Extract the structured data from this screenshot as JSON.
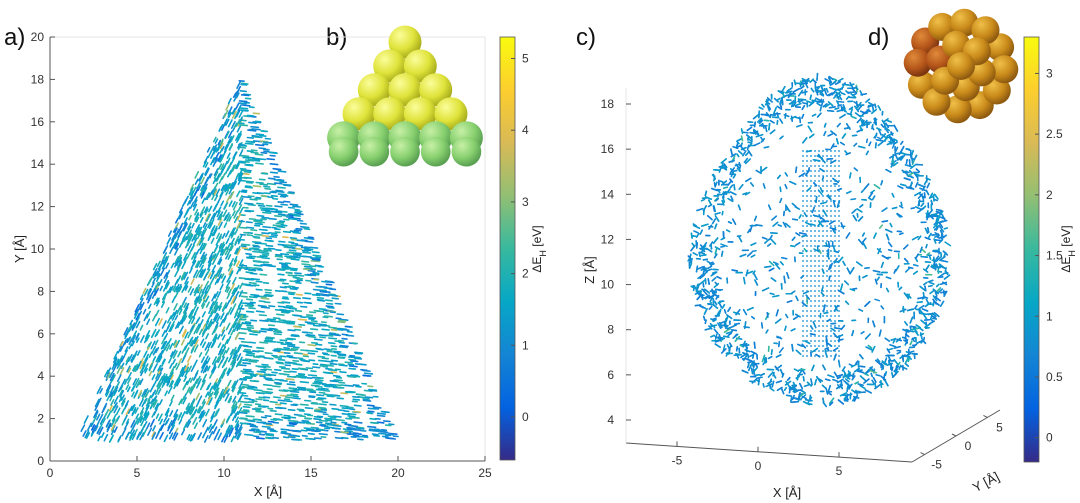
{
  "panels": {
    "a": "a)",
    "b": "b)",
    "c": "c)",
    "d": "d)"
  },
  "colors": {
    "colormap": [
      "#352a87",
      "#0363e1",
      "#1485d4",
      "#06a7c6",
      "#38b99e",
      "#92bf73",
      "#d9ba56",
      "#fcce2e",
      "#f9fb0e"
    ],
    "cluster_b_top": "#e2e63c",
    "cluster_b_bottom": "#86cf6e",
    "cluster_d": "#c98a1a",
    "cluster_d_dark": "#b5561a"
  },
  "chart_data": [
    {
      "id": "a",
      "type": "scatter",
      "title": "",
      "xlabel": "X [Å]",
      "ylabel": "Y [Å]",
      "xlim": [
        0,
        25
      ],
      "ylim": [
        0,
        20
      ],
      "xticks": [
        "0",
        "5",
        "10",
        "15",
        "20",
        "25"
      ],
      "yticks": [
        "0",
        "2",
        "4",
        "6",
        "8",
        "10",
        "12",
        "14",
        "16",
        "18",
        "20"
      ],
      "shape": "triangle",
      "outline": [
        [
          1.5,
          1.0
        ],
        [
          20.0,
          1.0
        ],
        [
          11.0,
          18.2
        ]
      ],
      "grid": false
    },
    {
      "id": "a-colorbar",
      "type": "heatmap",
      "label": "ΔE_H [eV]",
      "ticks": [
        "0",
        "1",
        "2",
        "3",
        "4",
        "5"
      ],
      "range": [
        -0.6,
        5.3
      ]
    },
    {
      "id": "c",
      "type": "scatter",
      "title": "",
      "xlabel": "X [Å]",
      "ylabel": "Z [Å]",
      "zlabel": "Y [Å]",
      "xticks": [
        "-5",
        "0",
        "5"
      ],
      "zticks": [
        "4",
        "6",
        "8",
        "10",
        "12",
        "14",
        "16",
        "18"
      ],
      "yticks": [
        "-5",
        "0",
        "5"
      ],
      "shape": "ellipsoid",
      "grid": false
    },
    {
      "id": "c-colorbar",
      "type": "heatmap",
      "label": "ΔE_H [eV]",
      "ticks": [
        "0",
        "0.5",
        "1",
        "1.5",
        "2",
        "2.5",
        "3"
      ],
      "range": [
        -0.2,
        3.3
      ]
    }
  ]
}
